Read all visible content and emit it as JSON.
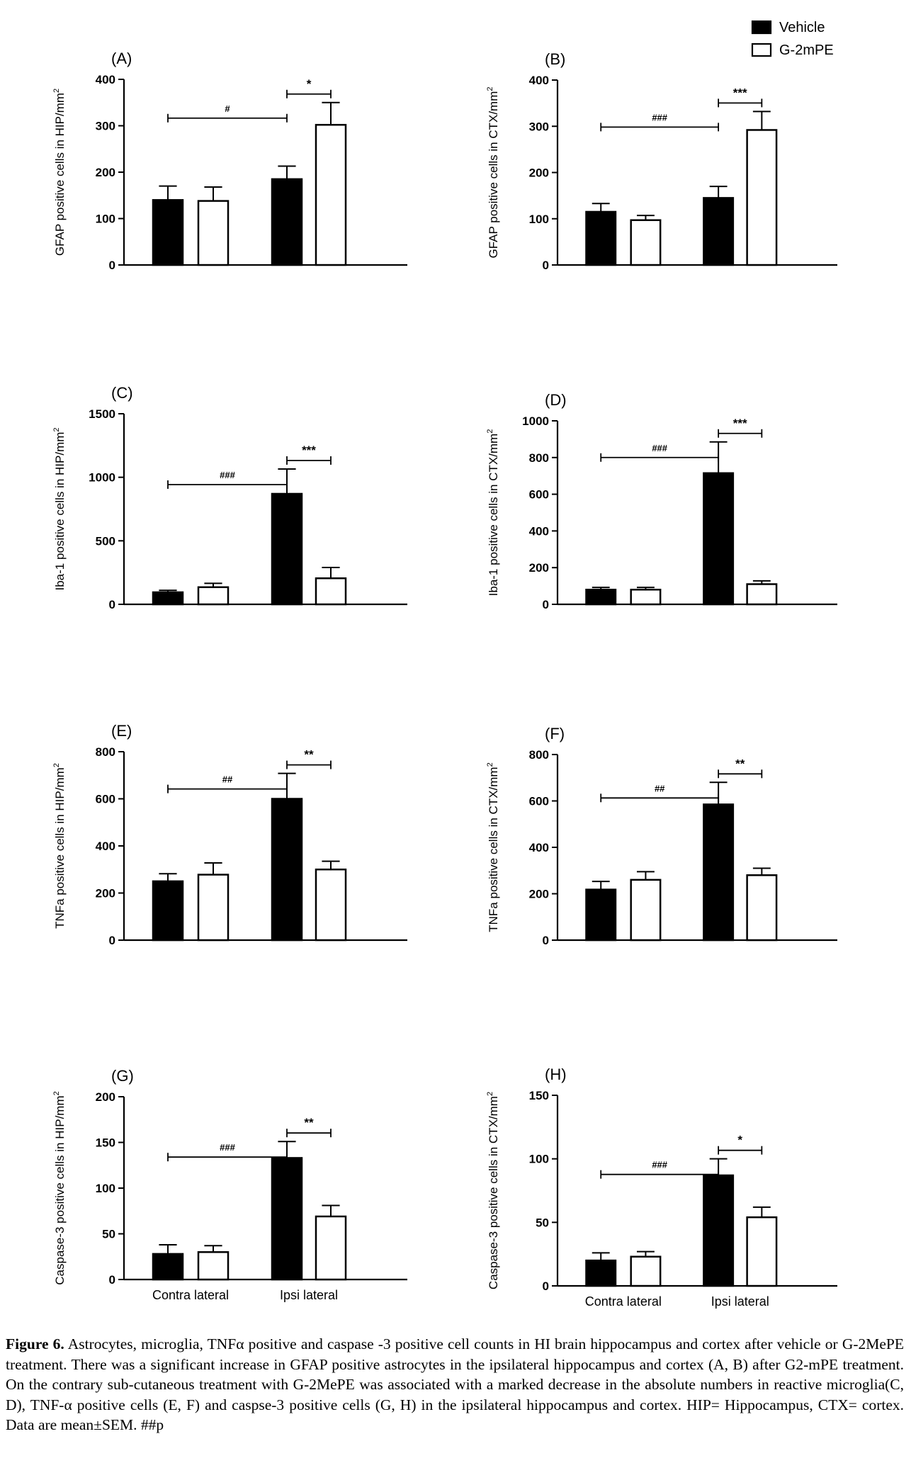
{
  "legend": [
    {
      "name": "Vehicle",
      "color": "#000000"
    },
    {
      "name": "G-2mPE",
      "color": "#ffffff"
    }
  ],
  "chart_data": [
    {
      "type": "bar",
      "panel": "(A)",
      "ylabel": "GFAP positive cells in HIP/mm2",
      "ylim": [
        0,
        400
      ],
      "yticks": [
        0,
        100,
        200,
        300,
        400
      ],
      "groups": [
        "Contra lateral",
        "Ipsi lateral"
      ],
      "xtick_labels_shown": false,
      "series": [
        {
          "name": "Vehicle",
          "values": [
            140,
            185
          ],
          "errors": [
            30,
            28
          ]
        },
        {
          "name": "G-2mPE",
          "values": [
            138,
            302
          ],
          "errors": [
            30,
            48
          ]
        }
      ],
      "annotations": [
        {
          "text": "#",
          "from": "Vehicle|Contra lateral",
          "to": "Vehicle|Ipsi lateral"
        },
        {
          "text": "*",
          "from": "Vehicle|Ipsi lateral",
          "to": "G-2mPE|Ipsi lateral"
        }
      ]
    },
    {
      "type": "bar",
      "panel": "(B)",
      "ylabel": "GFAP positive cells in CTX/mm2",
      "ylim": [
        0,
        400
      ],
      "yticks": [
        0,
        100,
        200,
        300,
        400
      ],
      "groups": [
        "Contra lateral",
        "Ipsi lateral"
      ],
      "xtick_labels_shown": false,
      "series": [
        {
          "name": "Vehicle",
          "values": [
            115,
            145
          ],
          "errors": [
            18,
            25
          ]
        },
        {
          "name": "G-2mPE",
          "values": [
            97,
            292
          ],
          "errors": [
            10,
            40
          ]
        }
      ],
      "annotations": [
        {
          "text": "###",
          "from": "Vehicle|Contra lateral",
          "to": "Vehicle|Ipsi lateral"
        },
        {
          "text": "***",
          "from": "Vehicle|Ipsi lateral",
          "to": "G-2mPE|Ipsi lateral"
        }
      ]
    },
    {
      "type": "bar",
      "panel": "(C)",
      "ylabel": "Iba-1 positive cells in HIP/mm2",
      "ylim": [
        0,
        1500
      ],
      "yticks": [
        0,
        500,
        1000,
        1500
      ],
      "groups": [
        "Contra lateral",
        "Ipsi lateral"
      ],
      "xtick_labels_shown": false,
      "series": [
        {
          "name": "Vehicle",
          "values": [
            95,
            870
          ],
          "errors": [
            15,
            195
          ]
        },
        {
          "name": "G-2mPE",
          "values": [
            135,
            205
          ],
          "errors": [
            30,
            85
          ]
        }
      ],
      "annotations": [
        {
          "text": "###",
          "from": "Vehicle|Contra lateral",
          "to": "Vehicle|Ipsi lateral"
        },
        {
          "text": "***",
          "from": "Vehicle|Ipsi lateral",
          "to": "G-2mPE|Ipsi lateral"
        }
      ]
    },
    {
      "type": "bar",
      "panel": "(D)",
      "ylabel": "Iba-1 positive cells in CTX/mm2",
      "ylim": [
        0,
        1000
      ],
      "yticks": [
        0,
        200,
        400,
        600,
        800,
        1000
      ],
      "groups": [
        "Contra lateral",
        "Ipsi lateral"
      ],
      "xtick_labels_shown": false,
      "series": [
        {
          "name": "Vehicle",
          "values": [
            80,
            715
          ],
          "errors": [
            12,
            170
          ]
        },
        {
          "name": "G-2mPE",
          "values": [
            80,
            110
          ],
          "errors": [
            12,
            18
          ]
        }
      ],
      "annotations": [
        {
          "text": "###",
          "from": "Vehicle|Contra lateral",
          "to": "Vehicle|Ipsi lateral"
        },
        {
          "text": "***",
          "from": "Vehicle|Ipsi lateral",
          "to": "G-2mPE|Ipsi lateral"
        }
      ]
    },
    {
      "type": "bar",
      "panel": "(E)",
      "ylabel": "TNFa positive cells in HIP/mm2",
      "ylim": [
        0,
        800
      ],
      "yticks": [
        0,
        200,
        400,
        600,
        800
      ],
      "groups": [
        "Contra lateral",
        "Ipsi lateral"
      ],
      "xtick_labels_shown": false,
      "series": [
        {
          "name": "Vehicle",
          "values": [
            250,
            600
          ],
          "errors": [
            32,
            108
          ]
        },
        {
          "name": "G-2mPE",
          "values": [
            278,
            300
          ],
          "errors": [
            50,
            35
          ]
        }
      ],
      "annotations": [
        {
          "text": "##",
          "from": "Vehicle|Contra lateral",
          "to": "Vehicle|Ipsi lateral"
        },
        {
          "text": "**",
          "from": "Vehicle|Ipsi lateral",
          "to": "G-2mPE|Ipsi lateral"
        }
      ]
    },
    {
      "type": "bar",
      "panel": "(F)",
      "ylabel": "TNFa positive cells in CTX/mm2",
      "ylim": [
        0,
        800
      ],
      "yticks": [
        0,
        200,
        400,
        600,
        800
      ],
      "groups": [
        "Contra lateral",
        "Ipsi lateral"
      ],
      "xtick_labels_shown": false,
      "series": [
        {
          "name": "Vehicle",
          "values": [
            218,
            585
          ],
          "errors": [
            35,
            95
          ]
        },
        {
          "name": "G-2mPE",
          "values": [
            260,
            280
          ],
          "errors": [
            35,
            30
          ]
        }
      ],
      "annotations": [
        {
          "text": "##",
          "from": "Vehicle|Contra lateral",
          "to": "Vehicle|Ipsi lateral"
        },
        {
          "text": "**",
          "from": "Vehicle|Ipsi lateral",
          "to": "G-2mPE|Ipsi lateral"
        }
      ]
    },
    {
      "type": "bar",
      "panel": "(G)",
      "ylabel": "Caspase-3 positive cells in HIP/mm2",
      "ylim": [
        0,
        200
      ],
      "yticks": [
        0,
        50,
        100,
        150,
        200
      ],
      "groups": [
        "Contra lateral",
        "Ipsi lateral"
      ],
      "xtick_labels_shown": true,
      "series": [
        {
          "name": "Vehicle",
          "values": [
            28,
            133
          ],
          "errors": [
            10,
            18
          ]
        },
        {
          "name": "G-2mPE",
          "values": [
            30,
            69
          ],
          "errors": [
            7,
            12
          ]
        }
      ],
      "annotations": [
        {
          "text": "###",
          "from": "Vehicle|Contra lateral",
          "to": "Vehicle|Ipsi lateral"
        },
        {
          "text": "**",
          "from": "Vehicle|Ipsi lateral",
          "to": "G-2mPE|Ipsi lateral"
        }
      ]
    },
    {
      "type": "bar",
      "panel": "(H)",
      "ylabel": "Caspase-3 positive cells in CTX/mm2",
      "ylim": [
        0,
        150
      ],
      "yticks": [
        0,
        50,
        100,
        150
      ],
      "groups": [
        "Contra lateral",
        "Ipsi lateral"
      ],
      "xtick_labels_shown": true,
      "series": [
        {
          "name": "Vehicle",
          "values": [
            20,
            87
          ],
          "errors": [
            6,
            13
          ]
        },
        {
          "name": "G-2mPE",
          "values": [
            23,
            54
          ],
          "errors": [
            4,
            8
          ]
        }
      ],
      "annotations": [
        {
          "text": "###",
          "from": "Vehicle|Contra lateral",
          "to": "Vehicle|Ipsi lateral"
        },
        {
          "text": "*",
          "from": "Vehicle|Ipsi lateral",
          "to": "G-2mPE|Ipsi lateral"
        }
      ]
    }
  ],
  "caption": {
    "label": "Figure 6.",
    "text": " Astrocytes, microglia, TNFα positive and caspase -3 positive cell counts in HI brain hippocampus and cortex after vehicle or G-2MePE treatment. There was a significant increase in GFAP positive astrocytes in the ipsilateral hippocampus and cortex (A, B) after G2-mPE treatment. On the contrary sub-cutaneous treatment with G-2MePE was associated with a marked decrease in the absolute numbers in reactive microglia(C, D), TNF-α positive cells (E, F) and caspse-3 positive cells (G, H) in the ipsilateral hippocampus and cortex. HIP= Hippocampus, CTX= cortex. Data are mean±SEM. ##p"
  }
}
